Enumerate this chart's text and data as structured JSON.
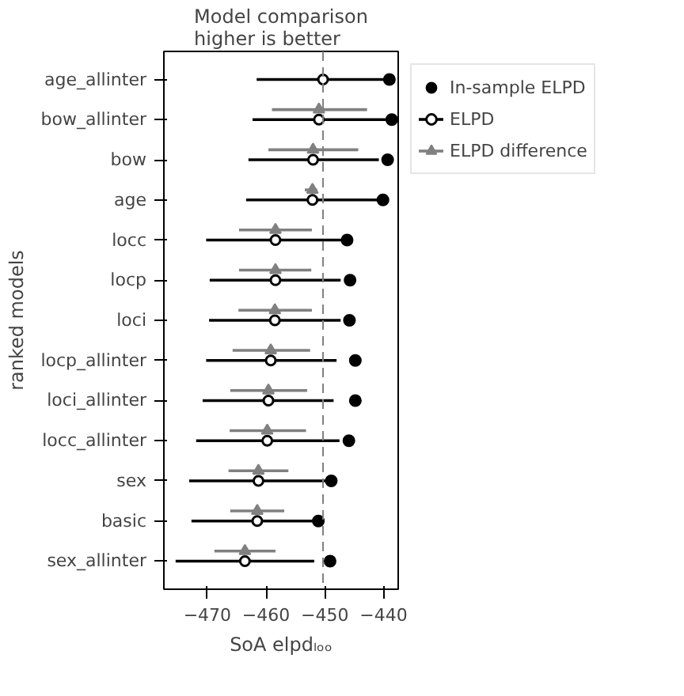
{
  "chart_data": {
    "type": "scatter",
    "orientation": "horizontal",
    "title": "Model comparison\nhigher is better",
    "xlabel": "SoA elpdₗₒₒ",
    "ylabel": "ranked models",
    "categories": [
      "age_allinter",
      "bow_allinter",
      "bow",
      "age",
      "locc",
      "locp",
      "loci",
      "locp_allinter",
      "loci_allinter",
      "locc_allinter",
      "sex",
      "basic",
      "sex_allinter"
    ],
    "xlim": [
      -477.4,
      -437.5
    ],
    "xticks": [
      -470,
      -460,
      -450,
      -440
    ],
    "grid": false,
    "legend": "right",
    "ref_lines": [
      {
        "axis": "x",
        "value": -450.3,
        "color": "#808080",
        "line_style": "dashed"
      }
    ],
    "series": [
      {
        "name": "In-sample ELPD",
        "color": "#000000",
        "marker": "circle",
        "values": [
          -439.0,
          -438.6,
          -439.3,
          -440.1,
          -446.2,
          -445.7,
          -445.8,
          -444.8,
          -444.8,
          -445.9,
          -448.9,
          -451.1,
          -449.1
        ]
      },
      {
        "name": "ELPD",
        "color": "#000000",
        "marker": "circle",
        "values": [
          -450.3,
          -451.0,
          -452.0,
          -452.1,
          -458.4,
          -458.4,
          -458.5,
          -459.2,
          -459.6,
          -459.8,
          -461.3,
          -461.5,
          -463.6
        ],
        "errors": [
          [
            -461.6,
            -438.9
          ],
          [
            -462.3,
            -439.5
          ],
          [
            -463.0,
            -440.8
          ],
          [
            -463.4,
            -440.2
          ],
          [
            -470.2,
            -446.2
          ],
          [
            -469.6,
            -447.3
          ],
          [
            -469.7,
            -447.3
          ],
          [
            -470.2,
            -448.0
          ],
          [
            -470.8,
            -448.5
          ],
          [
            -471.9,
            -447.5
          ],
          [
            -473.1,
            -448.9
          ],
          [
            -472.7,
            -451.1
          ],
          [
            -475.4,
            -451.8
          ]
        ]
      },
      {
        "name": "ELPD difference",
        "color": "#808080",
        "marker": "triangle",
        "values": [
          null,
          -451.0,
          -452.0,
          -452.1,
          -458.4,
          -458.4,
          -458.5,
          -459.2,
          -459.6,
          -459.8,
          -461.3,
          -461.5,
          -463.6
        ],
        "errors": [
          null,
          [
            -459.0,
            -442.8
          ],
          [
            -459.6,
            -444.3
          ],
          [
            -453.4,
            -451.3
          ],
          [
            -464.6,
            -452.2
          ],
          [
            -464.6,
            -452.3
          ],
          [
            -464.7,
            -452.2
          ],
          [
            -465.7,
            -452.5
          ],
          [
            -466.1,
            -453.0
          ],
          [
            -466.2,
            -453.2
          ],
          [
            -466.4,
            -456.2
          ],
          [
            -466.1,
            -456.9
          ],
          [
            -468.8,
            -458.4
          ]
        ]
      }
    ]
  }
}
